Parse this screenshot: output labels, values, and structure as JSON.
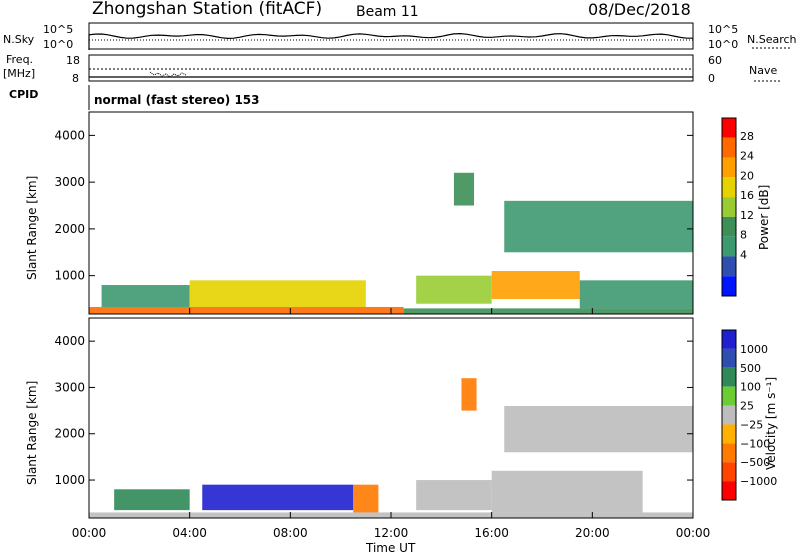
{
  "header": {
    "title": "Zhongshan Station (fitACF)",
    "beam": "Beam 11",
    "date": "08/Dec/2018"
  },
  "nsky_panel": {
    "label": "N.Sky",
    "left_ticks": [
      "10^5",
      "10^0"
    ],
    "right_ticks": [
      "10^5",
      "10^0"
    ],
    "right_label": "N.Search"
  },
  "freq_panel": {
    "label_line1": "Freq.",
    "label_line2": "[MHz]",
    "left_ticks": [
      "18",
      "8"
    ],
    "right_ticks": [
      "60",
      "0"
    ],
    "right_label": "Nave"
  },
  "cpid": {
    "label": "CPID",
    "value": "normal (fast stereo) 153"
  },
  "power_panel": {
    "ylabel": "Slant Range [km]",
    "yticks": [
      "4000",
      "3000",
      "2000",
      "1000"
    ],
    "colorbar_label": "Power [dB]",
    "colorbar_ticks": [
      "28",
      "24",
      "20",
      "16",
      "12",
      "8",
      "4"
    ],
    "colorbar_colors": [
      "#ff0000",
      "#ff6a00",
      "#ff9f00",
      "#e6d200",
      "#99cc33",
      "#3d8f57",
      "#3d9970",
      "#2f4fb0",
      "#0015ff"
    ]
  },
  "velocity_panel": {
    "ylabel": "Slant Range [km]",
    "yticks": [
      "4000",
      "3000",
      "2000",
      "1000"
    ],
    "colorbar_label": "Velocity [m s⁻¹]",
    "colorbar_ticks": [
      "1000",
      "500",
      "100",
      "25",
      "−25",
      "−100",
      "−500",
      "−1000"
    ],
    "colorbar_colors": [
      "#2020d0",
      "#2f4fb0",
      "#2f8a57",
      "#6ccc33",
      "#bdbdbd",
      "#ffb000",
      "#ff7a00",
      "#ff4500",
      "#ff0000"
    ]
  },
  "xaxis": {
    "ticks": [
      "00:00",
      "04:00",
      "08:00",
      "12:00",
      "16:00",
      "20:00",
      "00:00"
    ],
    "label": "Time UT"
  },
  "chart_data": [
    {
      "type": "heatmap",
      "panel": "power",
      "ylabel": "Slant Range [km]",
      "ylim": [
        180,
        4500
      ],
      "xlim_hours": [
        0,
        24
      ],
      "colorbar_label": "Power [dB]",
      "colorbar_range": [
        0,
        32
      ],
      "regions": [
        {
          "t0": 0,
          "t1": 12.5,
          "r0": 180,
          "r1": 330,
          "value": 28
        },
        {
          "t0": 12.5,
          "t1": 24,
          "r0": 180,
          "r1": 300,
          "value": 14
        },
        {
          "t0": 0.5,
          "t1": 4,
          "r0": 330,
          "r1": 800,
          "value": 10
        },
        {
          "t0": 4,
          "t1": 11,
          "r0": 330,
          "r1": 900,
          "value": 18
        },
        {
          "t0": 13,
          "t1": 16,
          "r0": 400,
          "r1": 1000,
          "value": 16
        },
        {
          "t0": 16,
          "t1": 19.5,
          "r0": 500,
          "r1": 1100,
          "value": 24
        },
        {
          "t0": 19.5,
          "t1": 24,
          "r0": 300,
          "r1": 900,
          "value": 10
        },
        {
          "t0": 16.5,
          "t1": 24,
          "r0": 1500,
          "r1": 2600,
          "value": 8
        },
        {
          "t0": 14.5,
          "t1": 15.3,
          "r0": 2500,
          "r1": 3200,
          "value": 14
        }
      ]
    },
    {
      "type": "heatmap",
      "panel": "velocity",
      "ylabel": "Slant Range [km]",
      "ylim": [
        180,
        4500
      ],
      "xlim_hours": [
        0,
        24
      ],
      "colorbar_label": "Velocity [m s⁻¹]",
      "colorbar_range": [
        -1000,
        1000
      ],
      "regions": [
        {
          "t0": 0,
          "t1": 24,
          "r0": 180,
          "r1": 300,
          "value": 100
        },
        {
          "t0": 4.5,
          "t1": 10.5,
          "r0": 350,
          "r1": 900,
          "value": 1000
        },
        {
          "t0": 1,
          "t1": 4,
          "r0": 350,
          "r1": 800,
          "value": 500
        },
        {
          "t0": 10.5,
          "t1": 11.5,
          "r0": 300,
          "r1": 900,
          "value": -500
        },
        {
          "t0": 13,
          "t1": 16,
          "r0": 350,
          "r1": 1000,
          "value": 100
        },
        {
          "t0": 16,
          "t1": 22,
          "r0": 300,
          "r1": 1200,
          "value": 100
        },
        {
          "t0": 16.5,
          "t1": 24,
          "r0": 1600,
          "r1": 2600,
          "value": 0
        },
        {
          "t0": 14.8,
          "t1": 15.4,
          "r0": 2500,
          "r1": 3200,
          "value": -500
        }
      ]
    }
  ]
}
